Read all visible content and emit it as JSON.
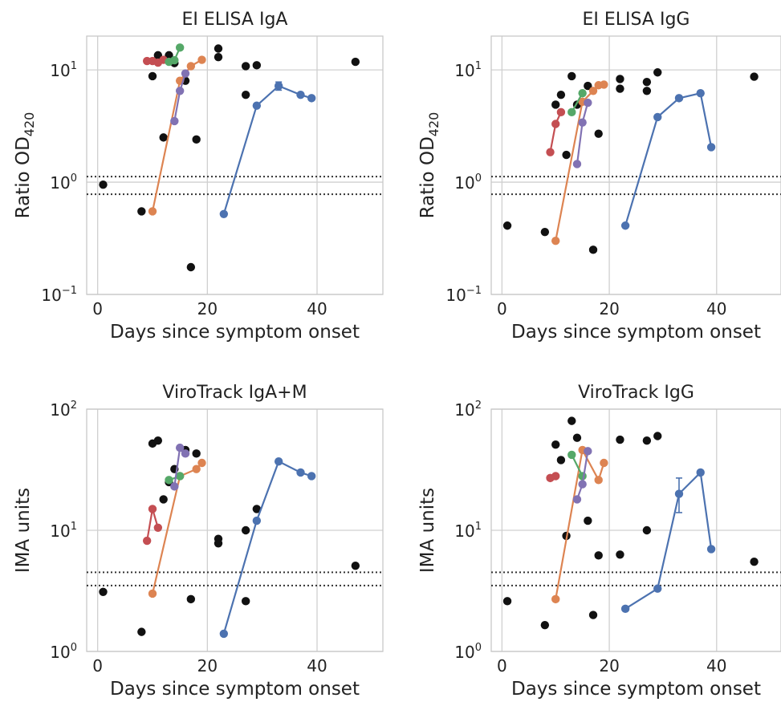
{
  "chart_data": [
    {
      "type": "scatter",
      "title": "EI ELISA IgA",
      "xlabel": "Days since symptom onset",
      "ylabel_main": "Ratio OD",
      "ylabel_sub": "420",
      "xlim": [
        -2,
        52
      ],
      "ylim": [
        0.1,
        20
      ],
      "yscale": "log",
      "xticks": [
        0,
        20,
        40
      ],
      "xtick_labels": [
        "0",
        "20",
        "40"
      ],
      "yticks": [
        0.1,
        1,
        10
      ],
      "ytick_bases": [
        "10",
        "10",
        "10"
      ],
      "ytick_exps": [
        "−1",
        "0",
        "1"
      ],
      "thresholds": [
        1.12,
        0.78
      ],
      "grid": true,
      "singles": [
        [
          1,
          0.95
        ],
        [
          8,
          0.55
        ],
        [
          10,
          8.8
        ],
        [
          11,
          13.5
        ],
        [
          12,
          2.5
        ],
        [
          13,
          13.5
        ],
        [
          14,
          11.5
        ],
        [
          16,
          8
        ],
        [
          17,
          0.175
        ],
        [
          18,
          2.4
        ],
        [
          22,
          15.5
        ],
        [
          22,
          13
        ],
        [
          27,
          10.8
        ],
        [
          27,
          6
        ],
        [
          29,
          11
        ],
        [
          47,
          11.8
        ]
      ],
      "series": [
        {
          "color": "#c44e52",
          "points": [
            [
              9,
              12
            ],
            [
              10,
              12
            ],
            [
              11,
              11.6
            ],
            [
              12,
              12.3
            ]
          ]
        },
        {
          "color": "#dd8452",
          "points": [
            [
              10,
              0.55
            ],
            [
              15,
              8
            ],
            [
              17,
              10.8
            ],
            [
              19,
              12.3
            ]
          ]
        },
        {
          "color": "#55a868",
          "points": [
            [
              13,
              11.8
            ],
            [
              14,
              12.2
            ],
            [
              15,
              15.8
            ]
          ]
        },
        {
          "color": "#8172b3",
          "points": [
            [
              14,
              3.5
            ],
            [
              15,
              6.5
            ],
            [
              16,
              9.3
            ]
          ]
        },
        {
          "color": "#4c72b0",
          "points": [
            [
              23,
              0.52
            ],
            [
              29,
              4.8
            ],
            [
              33,
              7.2
            ],
            [
              37,
              6
            ],
            [
              39,
              5.6
            ]
          ]
        }
      ],
      "errorbars": [
        {
          "x": 33,
          "y": 7.2,
          "lo": 6.6,
          "hi": 7.8,
          "color": "#4c72b0"
        }
      ]
    },
    {
      "type": "scatter",
      "title": "EI ELISA IgG",
      "xlabel": "Days since symptom onset",
      "ylabel_main": "Ratio OD",
      "ylabel_sub": "420",
      "xlim": [
        -2,
        52
      ],
      "ylim": [
        0.1,
        20
      ],
      "yscale": "log",
      "xticks": [
        0,
        20,
        40
      ],
      "xtick_labels": [
        "0",
        "20",
        "40"
      ],
      "yticks": [
        0.1,
        1,
        10
      ],
      "ytick_bases": [
        "10",
        "10",
        "10"
      ],
      "ytick_exps": [
        "−1",
        "0",
        "1"
      ],
      "thresholds": [
        1.12,
        0.78
      ],
      "grid": true,
      "singles": [
        [
          1,
          0.41
        ],
        [
          8,
          0.36
        ],
        [
          10,
          4.9
        ],
        [
          11,
          6
        ],
        [
          12,
          1.75
        ],
        [
          13,
          8.8
        ],
        [
          14,
          4.9
        ],
        [
          16,
          7.2
        ],
        [
          17,
          0.25
        ],
        [
          18,
          2.7
        ],
        [
          22,
          8.3
        ],
        [
          22,
          6.8
        ],
        [
          27,
          7.8
        ],
        [
          27,
          6.5
        ],
        [
          29,
          9.5
        ],
        [
          47,
          8.7
        ]
      ],
      "series": [
        {
          "color": "#c44e52",
          "points": [
            [
              9,
              1.85
            ],
            [
              10,
              3.3
            ],
            [
              11,
              4.2
            ]
          ]
        },
        {
          "color": "#dd8452",
          "points": [
            [
              10,
              0.3
            ],
            [
              15,
              5.2
            ],
            [
              17,
              6.5
            ],
            [
              18,
              7.3
            ],
            [
              19,
              7.4
            ]
          ]
        },
        {
          "color": "#55a868",
          "points": [
            [
              13,
              4.2
            ],
            [
              15,
              6.2
            ]
          ]
        },
        {
          "color": "#8172b3",
          "points": [
            [
              14,
              1.45
            ],
            [
              15,
              3.4
            ],
            [
              16,
              5.1
            ]
          ]
        },
        {
          "color": "#4c72b0",
          "points": [
            [
              23,
              0.41
            ],
            [
              29,
              3.8
            ],
            [
              33,
              5.6
            ],
            [
              37,
              6.2
            ],
            [
              39,
              2.05
            ]
          ]
        }
      ],
      "errorbars": []
    },
    {
      "type": "scatter",
      "title": "ViroTrack IgA+M",
      "xlabel": "Days since symptom onset",
      "ylabel_main": "IMA units",
      "ylabel_sub": "",
      "xlim": [
        -2,
        52
      ],
      "ylim": [
        1,
        100
      ],
      "yscale": "log",
      "xticks": [
        0,
        20,
        40
      ],
      "xtick_labels": [
        "0",
        "20",
        "40"
      ],
      "yticks": [
        1,
        10,
        100
      ],
      "ytick_bases": [
        "10",
        "10",
        "10"
      ],
      "ytick_exps": [
        "0",
        "1",
        "2"
      ],
      "thresholds": [
        4.5,
        3.5
      ],
      "grid": true,
      "singles": [
        [
          1,
          3.1
        ],
        [
          8,
          1.45
        ],
        [
          10,
          52
        ],
        [
          11,
          55
        ],
        [
          12,
          18
        ],
        [
          13,
          25
        ],
        [
          14,
          32
        ],
        [
          16,
          46
        ],
        [
          17,
          2.7
        ],
        [
          18,
          43
        ],
        [
          22,
          8.5
        ],
        [
          22,
          7.8
        ],
        [
          27,
          10
        ],
        [
          27,
          2.6
        ],
        [
          29,
          15
        ],
        [
          47,
          5.1
        ]
      ],
      "series": [
        {
          "color": "#c44e52",
          "points": [
            [
              9,
              8.2
            ],
            [
              10,
              15
            ],
            [
              11,
              10.5
            ]
          ]
        },
        {
          "color": "#dd8452",
          "points": [
            [
              10,
              3
            ],
            [
              15,
              28
            ],
            [
              18,
              32
            ],
            [
              19,
              36
            ]
          ]
        },
        {
          "color": "#55a868",
          "points": [
            [
              13,
              26
            ],
            [
              15,
              28
            ]
          ]
        },
        {
          "color": "#8172b3",
          "points": [
            [
              14,
              23
            ],
            [
              15,
              48
            ],
            [
              16,
              43
            ]
          ]
        },
        {
          "color": "#4c72b0",
          "points": [
            [
              23,
              1.4
            ],
            [
              29,
              12
            ],
            [
              33,
              37
            ],
            [
              37,
              30
            ],
            [
              39,
              28
            ]
          ]
        }
      ],
      "errorbars": []
    },
    {
      "type": "scatter",
      "title": "ViroTrack IgG",
      "xlabel": "Days since symptom onset",
      "ylabel_main": "IMA units",
      "ylabel_sub": "",
      "xlim": [
        -2,
        52
      ],
      "ylim": [
        1,
        100
      ],
      "yscale": "log",
      "xticks": [
        0,
        20,
        40
      ],
      "xtick_labels": [
        "0",
        "20",
        "40"
      ],
      "yticks": [
        1,
        10,
        100
      ],
      "ytick_bases": [
        "10",
        "10",
        "10"
      ],
      "ytick_exps": [
        "0",
        "1",
        "2"
      ],
      "thresholds": [
        4.5,
        3.5
      ],
      "grid": true,
      "singles": [
        [
          1,
          2.6
        ],
        [
          8,
          1.65
        ],
        [
          10,
          51
        ],
        [
          11,
          38
        ],
        [
          12,
          9
        ],
        [
          13,
          80
        ],
        [
          14,
          58
        ],
        [
          16,
          12
        ],
        [
          17,
          2
        ],
        [
          18,
          6.2
        ],
        [
          22,
          6.3
        ],
        [
          22,
          56
        ],
        [
          27,
          55
        ],
        [
          27,
          10
        ],
        [
          29,
          60
        ],
        [
          47,
          5.5
        ]
      ],
      "series": [
        {
          "color": "#c44e52",
          "points": [
            [
              9,
              27
            ],
            [
              10,
              28
            ]
          ]
        },
        {
          "color": "#dd8452",
          "points": [
            [
              10,
              2.7
            ],
            [
              15,
              46
            ],
            [
              18,
              26
            ],
            [
              19,
              36
            ]
          ]
        },
        {
          "color": "#55a868",
          "points": [
            [
              13,
              42
            ],
            [
              15,
              28
            ]
          ]
        },
        {
          "color": "#8172b3",
          "points": [
            [
              14,
              18
            ],
            [
              15,
              24
            ],
            [
              16,
              45
            ]
          ]
        },
        {
          "color": "#4c72b0",
          "points": [
            [
              23,
              2.25
            ],
            [
              29,
              3.3
            ],
            [
              33,
              20
            ],
            [
              37,
              30
            ],
            [
              39,
              7
            ]
          ]
        }
      ],
      "errorbars": [
        {
          "x": 33,
          "y": 20,
          "lo": 14,
          "hi": 27,
          "color": "#4c72b0"
        }
      ]
    }
  ]
}
